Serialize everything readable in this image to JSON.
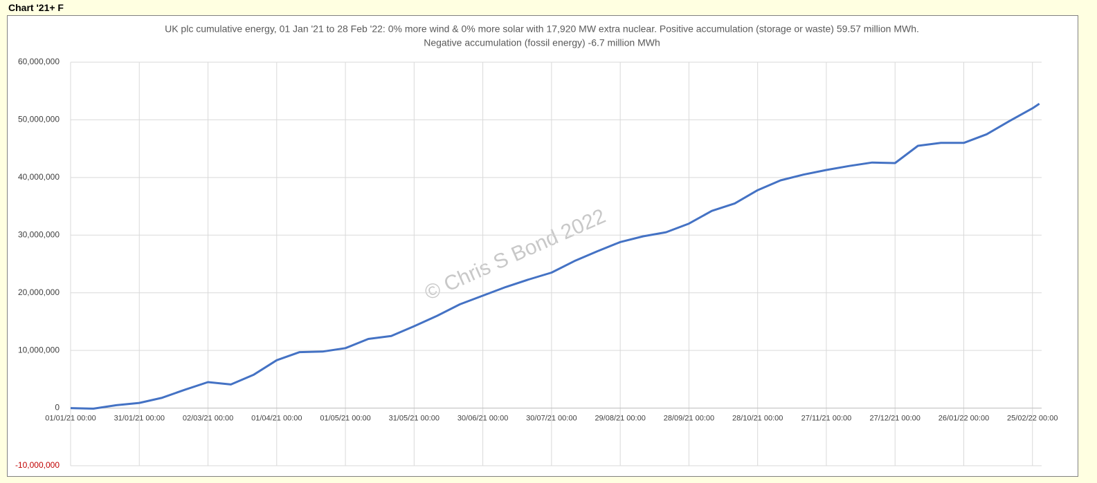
{
  "header": {
    "title": "Chart '21+ F"
  },
  "chart_data": {
    "type": "line",
    "title": "UK plc cumulative energy, 01 Jan '21 to 28 Feb '22: 0% more wind & 0% more solar with 17,920 MW extra nuclear.  Positive accumulation (storage or waste) 59.57 million MWh.",
    "subtitle": "Negative accumulation (fossil energy) -6.7 million MWh",
    "watermark": "© Chris S Bond  2022",
    "grid": true,
    "negative_tick_color": "#c00000",
    "xlim": [
      "01/01/21 00:00",
      "01/03/22 00:00"
    ],
    "ylim": [
      -10000000,
      60000000
    ],
    "yticks": [
      {
        "value": -10000000,
        "label": "-10,000,000"
      },
      0,
      {
        "value": 10000000,
        "label": "10,000,000"
      },
      {
        "value": 20000000,
        "label": "20,000,000"
      },
      {
        "value": 30000000,
        "label": "30,000,000"
      },
      {
        "value": 40000000,
        "label": "40,000,000"
      },
      {
        "value": 50000000,
        "label": "50,000,000"
      },
      {
        "value": 60000000,
        "label": "60,000,000"
      }
    ],
    "xticks": [
      "01/01/21 00:00",
      "31/01/21 00:00",
      "02/03/21 00:00",
      "01/04/21 00:00",
      "01/05/21 00:00",
      "31/05/21 00:00",
      "30/06/21 00:00",
      "30/07/21 00:00",
      "29/08/21 00:00",
      "28/09/21 00:00",
      "28/10/21 00:00",
      "27/11/21 00:00",
      "27/12/21 00:00",
      "26/01/22 00:00",
      "25/02/22 00:00"
    ],
    "x": [
      "01/01/21 00:00",
      "11/01/21 00:00",
      "21/01/21 00:00",
      "31/01/21 00:00",
      "10/02/21 00:00",
      "20/02/21 00:00",
      "02/03/21 00:00",
      "12/03/21 00:00",
      "22/03/21 00:00",
      "01/04/21 00:00",
      "11/04/21 00:00",
      "21/04/21 00:00",
      "01/05/21 00:00",
      "11/05/21 00:00",
      "21/05/21 00:00",
      "31/05/21 00:00",
      "10/06/21 00:00",
      "20/06/21 00:00",
      "30/06/21 00:00",
      "10/07/21 00:00",
      "20/07/21 00:00",
      "30/07/21 00:00",
      "09/08/21 00:00",
      "19/08/21 00:00",
      "29/08/21 00:00",
      "08/09/21 00:00",
      "18/09/21 00:00",
      "28/09/21 00:00",
      "08/10/21 00:00",
      "18/10/21 00:00",
      "28/10/21 00:00",
      "07/11/21 00:00",
      "17/11/21 00:00",
      "27/11/21 00:00",
      "07/12/21 00:00",
      "17/12/21 00:00",
      "27/12/21 00:00",
      "06/01/22 00:00",
      "16/01/22 00:00",
      "26/01/22 00:00",
      "05/02/22 00:00",
      "15/02/22 00:00",
      "25/02/22 00:00",
      "28/02/22 00:00"
    ],
    "series": [
      {
        "name": "Cumulative energy",
        "color": "#4472c4",
        "values": [
          0,
          -100000,
          500000,
          900000,
          1800000,
          3200000,
          4500000,
          4100000,
          5800000,
          8300000,
          9700000,
          9800000,
          10400000,
          12000000,
          12500000,
          14200000,
          16000000,
          18000000,
          19500000,
          21000000,
          22300000,
          23500000,
          25500000,
          27200000,
          28800000,
          29800000,
          30500000,
          32000000,
          34200000,
          35500000,
          37800000,
          39500000,
          40500000,
          41300000,
          42000000,
          42600000,
          42500000,
          45500000,
          46000000,
          46000000,
          47500000,
          49800000,
          52000000,
          52800000
        ]
      }
    ]
  }
}
